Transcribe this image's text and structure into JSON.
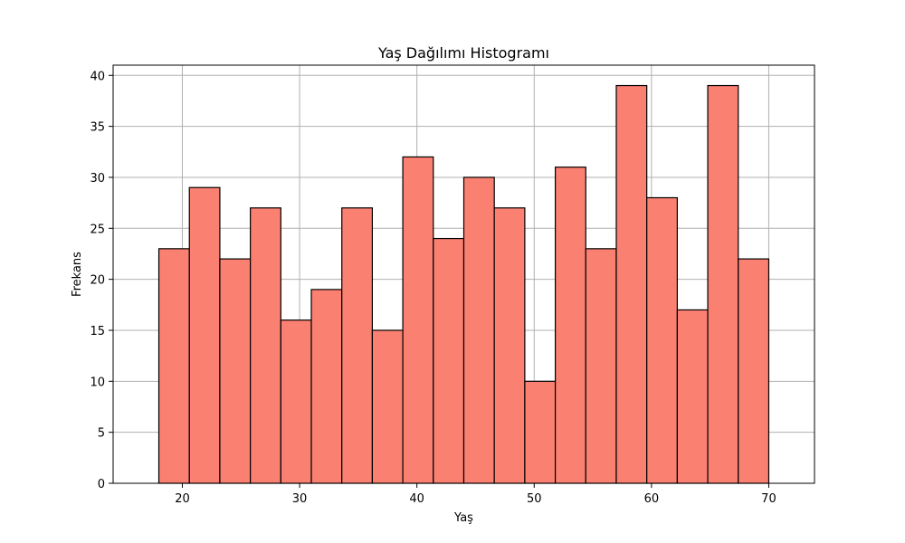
{
  "chart_data": {
    "type": "bar",
    "subtype": "histogram",
    "title": "Yaş Dağılımı Histogramı",
    "xlabel": "Yaş",
    "ylabel": "Frekans",
    "bin_edges": [
      18,
      20.6,
      23.2,
      25.8,
      28.4,
      31,
      33.6,
      36.2,
      38.8,
      41.4,
      44,
      46.6,
      49.2,
      51.8,
      54.4,
      57,
      59.6,
      62.2,
      64.8,
      67.4,
      70
    ],
    "values": [
      23,
      29,
      22,
      27,
      16,
      19,
      27,
      15,
      32,
      24,
      30,
      27,
      10,
      31,
      23,
      39,
      28,
      17,
      39,
      22
    ],
    "xlim": [
      14.1,
      73.9
    ],
    "ylim": [
      0,
      41
    ],
    "xticks": [
      20,
      30,
      40,
      50,
      60,
      70
    ],
    "yticks": [
      0,
      5,
      10,
      15,
      20,
      25,
      30,
      35,
      40
    ],
    "grid": true,
    "bar_color": "#fa8072",
    "edge_color": "#000000",
    "grid_color": "#b0b0b0"
  }
}
